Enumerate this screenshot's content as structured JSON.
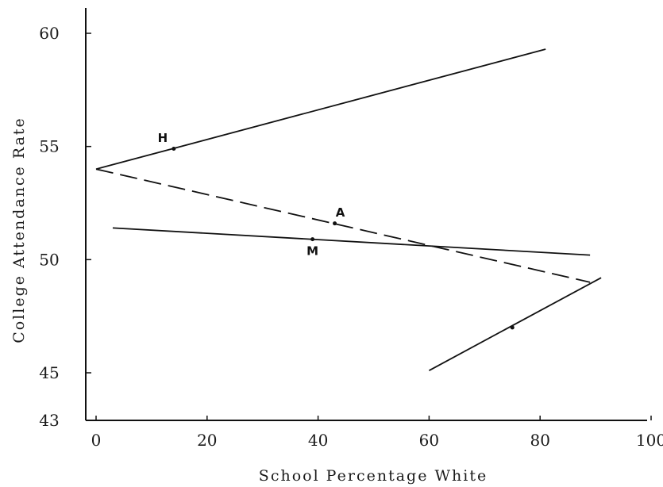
{
  "chart_data": {
    "type": "line",
    "title": "",
    "xlabel": "School Percentage White",
    "ylabel": "College Attendance Rate",
    "xlim": [
      0,
      100
    ],
    "ylim": [
      43,
      61
    ],
    "x_ticks": [
      {
        "value": 0,
        "label": "0"
      },
      {
        "value": 20,
        "label": "20"
      },
      {
        "value": 40,
        "label": "40"
      },
      {
        "value": 60,
        "label": "60"
      },
      {
        "value": 80,
        "label": "80"
      },
      {
        "value": 100,
        "label": "100"
      }
    ],
    "y_ticks": [
      {
        "value": 43,
        "label": "43"
      },
      {
        "value": 45,
        "label": "45"
      },
      {
        "value": 50,
        "label": "50"
      },
      {
        "value": 55,
        "label": "55"
      },
      {
        "value": 60,
        "label": "60"
      }
    ],
    "series": [
      {
        "name": "H",
        "style": "solid",
        "points": [
          {
            "x": 0,
            "y": 54.0
          },
          {
            "x": 81,
            "y": 59.3
          }
        ],
        "marker": {
          "x": 14,
          "y": 54.9
        },
        "label_at": {
          "x": 12,
          "y": 55.2
        }
      },
      {
        "name": "A",
        "style": "dashed",
        "points": [
          {
            "x": 0,
            "y": 54.0
          },
          {
            "x": 89,
            "y": 49.0
          }
        ],
        "marker": {
          "x": 43,
          "y": 51.6
        },
        "label_at": {
          "x": 44,
          "y": 51.9
        }
      },
      {
        "name": "M",
        "style": "solid",
        "points": [
          {
            "x": 3,
            "y": 51.4
          },
          {
            "x": 89,
            "y": 50.2
          }
        ],
        "marker": {
          "x": 39,
          "y": 50.9
        },
        "label_at": {
          "x": 39,
          "y": 50.2
        }
      },
      {
        "name": "",
        "style": "solid",
        "points": [
          {
            "x": 60,
            "y": 45.1
          },
          {
            "x": 91,
            "y": 49.2
          }
        ],
        "marker": {
          "x": 75,
          "y": 47.0
        },
        "label_at": null
      }
    ]
  }
}
